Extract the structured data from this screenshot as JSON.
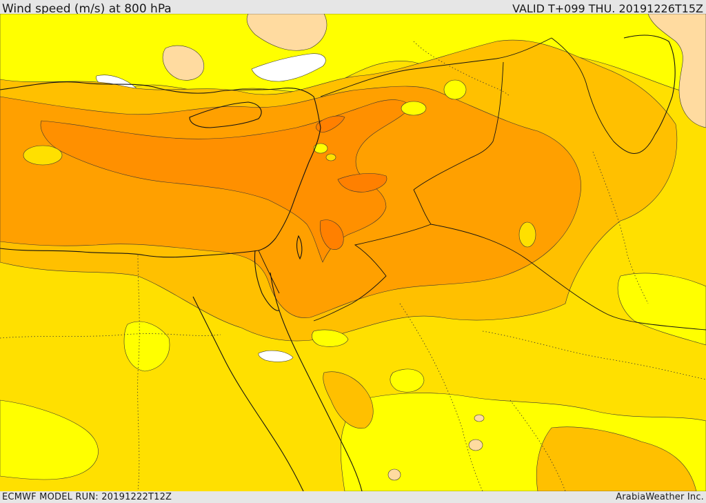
{
  "header": {
    "title": "Wind speed (m/s) at 800 hPa",
    "valid_time": "VALID T+099 THU. 20191226T15Z"
  },
  "footer": {
    "model_run": "ECMWF MODEL RUN: 20191222T12Z",
    "credit": "ArabiaWeather Inc."
  },
  "map": {
    "region": "Eastern Mediterranean / Levant / Middle East",
    "field": "wind speed",
    "colors": {
      "very_low": "#ffffff",
      "low": "#ffdba0",
      "light": "#ffff00",
      "moderate": "#ffe000",
      "fresh": "#ffc000",
      "strong": "#ffa000",
      "very_strong": "#ff8000",
      "borders": "#1a1a1a"
    }
  }
}
